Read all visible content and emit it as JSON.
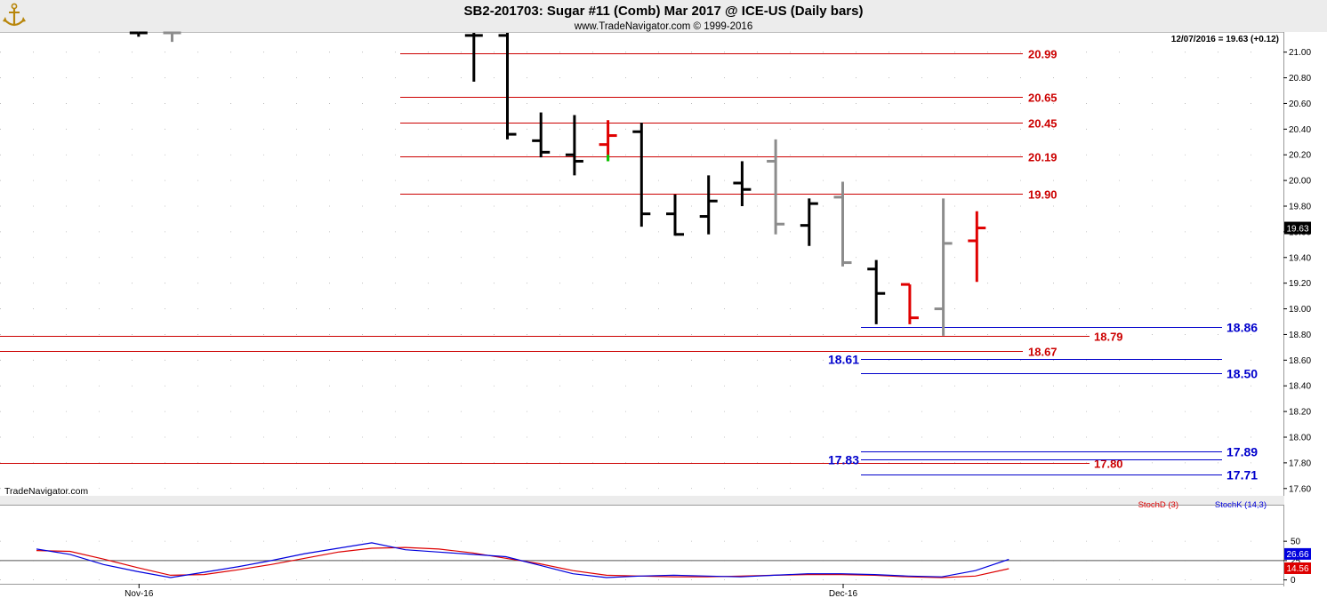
{
  "header": {
    "title": "SB2-201703:  Sugar #11 (Comb) Mar 2017 @ ICE-US  (Daily bars)",
    "subtitle": "www.TradeNavigator.com © 1999-2016",
    "last_quote": "12/07/2016 = 19.63 (+0.12)",
    "watermark": "TradeNavigator.com",
    "logo_icon": "anchor-logo-icon"
  },
  "colors": {
    "up_bar": "#000000",
    "neutral_bar": "#8c8c8c",
    "down_bar": "#e00000",
    "red_level": "#cc0000",
    "blue_level": "#0000cc",
    "stochD": "#dd0000",
    "stochK": "#0000dd",
    "green_tick": "#00cc00"
  },
  "chart_data": [
    {
      "type": "ohlc",
      "title": "SB2-201703:  Sugar #11 (Comb) Mar 2017 @ ICE-US  (Daily bars)",
      "ylim": [
        17.55,
        21.15
      ],
      "y_ticks": [
        "21.00",
        "20.80",
        "20.60",
        "20.40",
        "20.20",
        "20.00",
        "19.80",
        "19.60",
        "19.40",
        "19.20",
        "19.00",
        "18.80",
        "18.60",
        "18.40",
        "18.20",
        "18.00",
        "17.80",
        "17.60"
      ],
      "x_ticks": [
        "Nov-16",
        "Dec-16"
      ],
      "last_price_label": "19.63",
      "grid": true,
      "bars": [
        {
          "i": 4,
          "o": 21.15,
          "h": 21.15,
          "l": 21.12,
          "c": 21.15,
          "color": "black"
        },
        {
          "i": 5,
          "o": 21.15,
          "h": 21.15,
          "l": 21.08,
          "c": 21.15,
          "color": "gray"
        },
        {
          "i": 14,
          "o": 21.13,
          "h": 21.15,
          "l": 20.77,
          "c": 21.13,
          "color": "black"
        },
        {
          "i": 15,
          "o": 21.13,
          "h": 21.15,
          "l": 20.32,
          "c": 20.36,
          "color": "black"
        },
        {
          "i": 16,
          "o": 20.31,
          "h": 20.53,
          "l": 20.18,
          "c": 20.22,
          "color": "black"
        },
        {
          "i": 17,
          "o": 20.2,
          "h": 20.51,
          "l": 20.04,
          "c": 20.15,
          "color": "black"
        },
        {
          "i": 18,
          "o": 20.28,
          "h": 20.47,
          "l": 20.15,
          "c": 20.35,
          "color": "red"
        },
        {
          "i": 19,
          "o": 20.38,
          "h": 20.45,
          "l": 19.64,
          "c": 19.74,
          "color": "black"
        },
        {
          "i": 20,
          "o": 19.74,
          "h": 19.89,
          "l": 19.57,
          "c": 19.58,
          "color": "black"
        },
        {
          "i": 21,
          "o": 19.72,
          "h": 20.04,
          "l": 19.58,
          "c": 19.84,
          "color": "black"
        },
        {
          "i": 22,
          "o": 19.98,
          "h": 20.15,
          "l": 19.8,
          "c": 19.93,
          "color": "black"
        },
        {
          "i": 23,
          "o": 20.15,
          "h": 20.32,
          "l": 19.58,
          "c": 19.66,
          "color": "gray"
        },
        {
          "i": 24,
          "o": 19.65,
          "h": 19.86,
          "l": 19.49,
          "c": 19.82,
          "color": "black"
        },
        {
          "i": 25,
          "o": 19.87,
          "h": 19.99,
          "l": 19.33,
          "c": 19.36,
          "color": "gray"
        },
        {
          "i": 26,
          "o": 19.31,
          "h": 19.38,
          "l": 18.88,
          "c": 19.12,
          "color": "black"
        },
        {
          "i": 27,
          "o": 19.19,
          "h": 19.19,
          "l": 18.88,
          "c": 18.93,
          "color": "red"
        },
        {
          "i": 28,
          "o": 19.0,
          "h": 19.86,
          "l": 18.79,
          "c": 19.51,
          "color": "gray"
        },
        {
          "i": 29,
          "o": 19.53,
          "h": 19.76,
          "l": 19.21,
          "c": 19.63,
          "color": "red"
        }
      ],
      "levels": [
        {
          "value": 20.99,
          "label": "20.99",
          "color": "red"
        },
        {
          "value": 20.65,
          "label": "20.65",
          "color": "red"
        },
        {
          "value": 20.45,
          "label": "20.45",
          "color": "red"
        },
        {
          "value": 20.19,
          "label": "20.19",
          "color": "red"
        },
        {
          "value": 19.9,
          "label": "19.90",
          "color": "red"
        },
        {
          "value": 18.79,
          "label": "18.79",
          "color": "red"
        },
        {
          "value": 18.67,
          "label": "18.67",
          "color": "red"
        },
        {
          "value": 17.8,
          "label": "17.80",
          "color": "red"
        },
        {
          "value": 18.86,
          "label": "18.86",
          "color": "blue"
        },
        {
          "value": 18.61,
          "label": "18.61",
          "color": "blue"
        },
        {
          "value": 18.5,
          "label": "18.50",
          "color": "blue"
        },
        {
          "value": 17.89,
          "label": "17.89",
          "color": "blue"
        },
        {
          "value": 17.83,
          "label": "17.83",
          "color": "blue"
        },
        {
          "value": 17.71,
          "label": "17.71",
          "color": "blue"
        }
      ]
    },
    {
      "type": "line",
      "ylim": [
        -5,
        95
      ],
      "y_ticks": [
        "50",
        "25",
        "0"
      ],
      "reference_line": 25,
      "legend": [
        "StochD (3)",
        "StochK (14,3)"
      ],
      "series": [
        {
          "name": "StochD (3)",
          "color": "red",
          "last_label": "14.56",
          "values": [
            {
              "i": 0,
              "v": 38
            },
            {
              "i": 1,
              "v": 37
            },
            {
              "i": 2,
              "v": 27
            },
            {
              "i": 3,
              "v": 16
            },
            {
              "i": 4,
              "v": 6
            },
            {
              "i": 5,
              "v": 7
            },
            {
              "i": 6,
              "v": 13
            },
            {
              "i": 7,
              "v": 20
            },
            {
              "i": 8,
              "v": 28
            },
            {
              "i": 9,
              "v": 36
            },
            {
              "i": 10,
              "v": 41
            },
            {
              "i": 11,
              "v": 42
            },
            {
              "i": 12,
              "v": 40
            },
            {
              "i": 13,
              "v": 35
            },
            {
              "i": 14,
              "v": 28
            },
            {
              "i": 15,
              "v": 21
            },
            {
              "i": 16,
              "v": 12
            },
            {
              "i": 17,
              "v": 6
            },
            {
              "i": 18,
              "v": 5
            },
            {
              "i": 19,
              "v": 4
            },
            {
              "i": 20,
              "v": 4
            },
            {
              "i": 21,
              "v": 5
            },
            {
              "i": 22,
              "v": 6
            },
            {
              "i": 23,
              "v": 7
            },
            {
              "i": 24,
              "v": 7
            },
            {
              "i": 25,
              "v": 6
            },
            {
              "i": 26,
              "v": 4
            },
            {
              "i": 27,
              "v": 3
            },
            {
              "i": 28,
              "v": 5
            },
            {
              "i": 29,
              "v": 14.56
            }
          ]
        },
        {
          "name": "StochK (14,3)",
          "color": "blue",
          "last_label": "26.66",
          "values": [
            {
              "i": 0,
              "v": 40
            },
            {
              "i": 1,
              "v": 33
            },
            {
              "i": 2,
              "v": 20
            },
            {
              "i": 3,
              "v": 11
            },
            {
              "i": 4,
              "v": 3
            },
            {
              "i": 5,
              "v": 10
            },
            {
              "i": 6,
              "v": 17
            },
            {
              "i": 7,
              "v": 25
            },
            {
              "i": 8,
              "v": 34
            },
            {
              "i": 9,
              "v": 41
            },
            {
              "i": 10,
              "v": 48
            },
            {
              "i": 11,
              "v": 39
            },
            {
              "i": 12,
              "v": 36
            },
            {
              "i": 13,
              "v": 33
            },
            {
              "i": 14,
              "v": 30
            },
            {
              "i": 15,
              "v": 19
            },
            {
              "i": 16,
              "v": 8
            },
            {
              "i": 17,
              "v": 3
            },
            {
              "i": 18,
              "v": 5
            },
            {
              "i": 19,
              "v": 6
            },
            {
              "i": 20,
              "v": 5
            },
            {
              "i": 21,
              "v": 4
            },
            {
              "i": 22,
              "v": 6
            },
            {
              "i": 23,
              "v": 8
            },
            {
              "i": 24,
              "v": 8
            },
            {
              "i": 25,
              "v": 7
            },
            {
              "i": 26,
              "v": 5
            },
            {
              "i": 27,
              "v": 4
            },
            {
              "i": 28,
              "v": 12
            },
            {
              "i": 29,
              "v": 26.66
            }
          ]
        }
      ]
    }
  ]
}
